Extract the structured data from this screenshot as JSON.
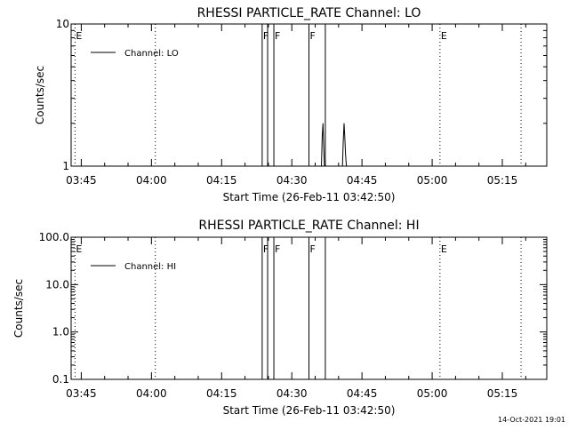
{
  "footer": {
    "timestamp": "14-Oct-2021 19:01"
  },
  "chart_data": [
    {
      "type": "line",
      "title": "RHESSI PARTICLE_RATE Channel: LO",
      "xlabel": "Start Time (26-Feb-11 03:42:50)",
      "ylabel": "Counts/sec",
      "y_scale": "log",
      "xlim": [
        "03:42:50",
        "05:24:30"
      ],
      "ylim": [
        1,
        10
      ],
      "x_ticks": [
        "03:45",
        "04:00",
        "04:15",
        "04:30",
        "04:45",
        "05:00",
        "05:15"
      ],
      "y_ticks": [
        {
          "value": 1,
          "label": "1"
        },
        {
          "value": 10,
          "label": "10"
        }
      ],
      "legend": {
        "placement": "top-left",
        "entries": [
          "Channel: LO"
        ]
      },
      "series": [
        {
          "name": "Channel: LO",
          "points": [
            [
              "04:36:20",
              1
            ],
            [
              "04:36:30",
              1.6
            ],
            [
              "04:36:40",
              2.0
            ],
            [
              "04:36:50",
              1.3
            ],
            [
              "04:37:00",
              1
            ],
            [
              "04:40:50",
              1
            ],
            [
              "04:41:00",
              1.5
            ],
            [
              "04:41:10",
              2.0
            ],
            [
              "04:41:20",
              1.6
            ],
            [
              "04:41:30",
              1.2
            ],
            [
              "04:41:40",
              1
            ]
          ]
        }
      ],
      "event_lines": [
        {
          "time": "03:43:40",
          "style": "dotted",
          "label": "E"
        },
        {
          "time": "04:00:50",
          "style": "dotted",
          "label": ""
        },
        {
          "time": "04:23:40",
          "style": "solid",
          "label": "F"
        },
        {
          "time": "04:24:50",
          "style": "solid",
          "label": ""
        },
        {
          "time": "04:26:10",
          "style": "solid",
          "label": "F"
        },
        {
          "time": "04:33:40",
          "style": "solid",
          "label": "F"
        },
        {
          "time": "04:37:10",
          "style": "solid",
          "label": ""
        },
        {
          "time": "05:01:40",
          "style": "dotted",
          "label": "E"
        },
        {
          "time": "05:19:00",
          "style": "dotted",
          "label": ""
        }
      ]
    },
    {
      "type": "line",
      "title": "RHESSI PARTICLE_RATE Channel: HI",
      "xlabel": "Start Time (26-Feb-11 03:42:50)",
      "ylabel": "Counts/sec",
      "y_scale": "log",
      "xlim": [
        "03:42:50",
        "05:24:30"
      ],
      "ylim": [
        0.1,
        100
      ],
      "x_ticks": [
        "03:45",
        "04:00",
        "04:15",
        "04:30",
        "04:45",
        "05:00",
        "05:15"
      ],
      "y_ticks": [
        {
          "value": 0.1,
          "label": "0.1"
        },
        {
          "value": 1,
          "label": "1.0"
        },
        {
          "value": 10,
          "label": "10.0"
        },
        {
          "value": 100,
          "label": "100.0"
        }
      ],
      "legend": {
        "placement": "top-left",
        "entries": [
          "Channel: HI"
        ]
      },
      "series": [
        {
          "name": "Channel: HI",
          "points": []
        }
      ],
      "event_lines": [
        {
          "time": "03:43:40",
          "style": "dotted",
          "label": "E"
        },
        {
          "time": "04:00:50",
          "style": "dotted",
          "label": ""
        },
        {
          "time": "04:23:40",
          "style": "solid",
          "label": "F"
        },
        {
          "time": "04:24:50",
          "style": "solid",
          "label": ""
        },
        {
          "time": "04:26:10",
          "style": "solid",
          "label": "F"
        },
        {
          "time": "04:33:40",
          "style": "solid",
          "label": "F"
        },
        {
          "time": "04:37:10",
          "style": "solid",
          "label": ""
        },
        {
          "time": "05:01:40",
          "style": "dotted",
          "label": "E"
        },
        {
          "time": "05:19:00",
          "style": "dotted",
          "label": ""
        }
      ]
    }
  ]
}
